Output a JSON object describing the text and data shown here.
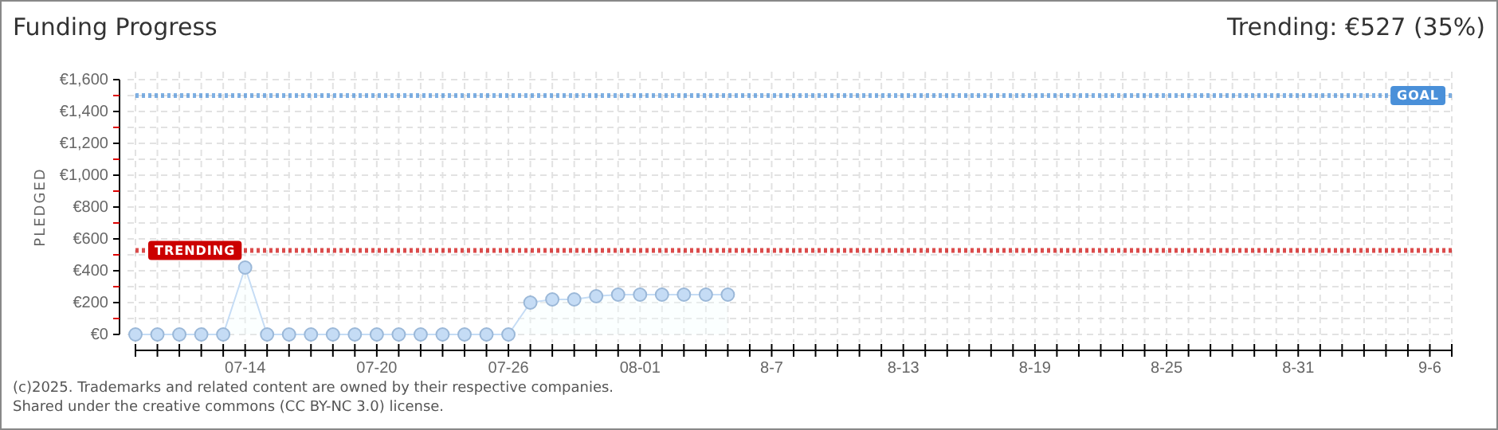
{
  "chart_data": {
    "type": "area",
    "title": "Funding Progress",
    "subtitle": "Trending: €527 (35%)",
    "ylabel": "PLEDGED",
    "x": [
      "--07-09",
      "--07-10",
      "--07-11",
      "--07-12",
      "--07-13",
      "--07-14",
      "--07-15",
      "--07-16",
      "--07-17",
      "--07-18",
      "--07-19",
      "--07-20",
      "--07-21",
      "--07-22",
      "--07-23",
      "--07-24",
      "--07-25",
      "--07-26",
      "--07-27",
      "--07-28",
      "--07-29",
      "--07-30",
      "--07-31",
      "--08-01",
      "--08-02",
      "--08-03",
      "--08-04",
      "--08-05"
    ],
    "series": [
      {
        "color": "#c5dcf5",
        "values": [
          0,
          0,
          0,
          0,
          0,
          420,
          0,
          0,
          0,
          0,
          0,
          0,
          0,
          0,
          0,
          0,
          0,
          0,
          200,
          220,
          220,
          240,
          250,
          250,
          250,
          250,
          250,
          250
        ]
      }
    ],
    "marker": "circle",
    "grid": true,
    "xlim": [
      "--07-09",
      "--09-07"
    ],
    "xticks": [
      {
        "value": "--07-09",
        "label": null
      },
      {
        "value": "--07-10",
        "label": null
      },
      {
        "value": "--07-11",
        "label": null
      },
      {
        "value": "--07-12",
        "label": null
      },
      {
        "value": "--07-13",
        "label": null
      },
      {
        "value": "--07-14",
        "label": "07-14"
      },
      {
        "value": "--07-15",
        "label": null
      },
      {
        "value": "--07-16",
        "label": null
      },
      {
        "value": "--07-17",
        "label": null
      },
      {
        "value": "--07-18",
        "label": null
      },
      {
        "value": "--07-19",
        "label": null
      },
      {
        "value": "--07-20",
        "label": "07-20"
      },
      {
        "value": "--07-21",
        "label": null
      },
      {
        "value": "--07-22",
        "label": null
      },
      {
        "value": "--07-23",
        "label": null
      },
      {
        "value": "--07-24",
        "label": null
      },
      {
        "value": "--07-25",
        "label": null
      },
      {
        "value": "--07-26",
        "label": "07-26"
      },
      {
        "value": "--07-27",
        "label": null
      },
      {
        "value": "--07-28",
        "label": null
      },
      {
        "value": "--07-29",
        "label": null
      },
      {
        "value": "--07-30",
        "label": null
      },
      {
        "value": "--07-31",
        "label": null
      },
      {
        "value": "--08-01",
        "label": "08-01"
      },
      {
        "value": "--08-02",
        "label": null
      },
      {
        "value": "--08-03",
        "label": null
      },
      {
        "value": "--08-04",
        "label": null
      },
      {
        "value": "--08-05",
        "label": null
      },
      {
        "value": "--08-06",
        "label": null
      },
      {
        "value": "--08-07",
        "label": "8-7"
      },
      {
        "value": "--08-08",
        "label": null
      },
      {
        "value": "--08-09",
        "label": null
      },
      {
        "value": "--08-10",
        "label": null
      },
      {
        "value": "--08-11",
        "label": null
      },
      {
        "value": "--08-12",
        "label": null
      },
      {
        "value": "--08-13",
        "label": "8-13"
      },
      {
        "value": "--08-14",
        "label": null
      },
      {
        "value": "--08-15",
        "label": null
      },
      {
        "value": "--08-16",
        "label": null
      },
      {
        "value": "--08-17",
        "label": null
      },
      {
        "value": "--08-18",
        "label": null
      },
      {
        "value": "--08-19",
        "label": "8-19"
      },
      {
        "value": "--08-20",
        "label": null
      },
      {
        "value": "--08-21",
        "label": null
      },
      {
        "value": "--08-22",
        "label": null
      },
      {
        "value": "--08-23",
        "label": null
      },
      {
        "value": "--08-24",
        "label": null
      },
      {
        "value": "--08-25",
        "label": "8-25"
      },
      {
        "value": "--08-26",
        "label": null
      },
      {
        "value": "--08-27",
        "label": null
      },
      {
        "value": "--08-28",
        "label": null
      },
      {
        "value": "--08-29",
        "label": null
      },
      {
        "value": "--08-30",
        "label": null
      },
      {
        "value": "--08-31",
        "label": "8-31"
      },
      {
        "value": "--09-01",
        "label": null
      },
      {
        "value": "--09-02",
        "label": null
      },
      {
        "value": "--09-03",
        "label": null
      },
      {
        "value": "--09-04",
        "label": null
      },
      {
        "value": "--09-05",
        "label": null
      },
      {
        "value": "--09-06",
        "label": "9-6"
      },
      {
        "value": "--09-07",
        "label": null
      }
    ],
    "ylim": [
      0,
      1600
    ],
    "yticks": [
      {
        "value": 0,
        "label": "€0"
      },
      {
        "value": 100,
        "label": null
      },
      {
        "value": 200,
        "label": "€200"
      },
      {
        "value": 300,
        "label": null
      },
      {
        "value": 400,
        "label": "€400"
      },
      {
        "value": 500,
        "label": null
      },
      {
        "value": 600,
        "label": "€600"
      },
      {
        "value": 700,
        "label": null
      },
      {
        "value": 800,
        "label": "€800"
      },
      {
        "value": 900,
        "label": null
      },
      {
        "value": 1000,
        "label": "€1,000"
      },
      {
        "value": 1100,
        "label": null
      },
      {
        "value": 1200,
        "label": "€1,200"
      },
      {
        "value": 1300,
        "label": null
      },
      {
        "value": 1400,
        "label": "€1,400"
      },
      {
        "value": 1500,
        "label": null
      },
      {
        "value": 1600,
        "label": "€1,600"
      }
    ],
    "ref_lines": [
      {
        "axis": "y",
        "value": 1500,
        "label": "GOAL",
        "color": "#4a90d9",
        "line_style": "dotted"
      },
      {
        "axis": "y",
        "value": 527,
        "label": "TRENDING",
        "color": "#cc0000",
        "line_style": "dotted"
      }
    ],
    "annotations": [
      "(c)2025. Trademarks and related content are owned by their respective companies.",
      "Shared under the creative commons (CC BY-NC 3.0) license."
    ]
  }
}
